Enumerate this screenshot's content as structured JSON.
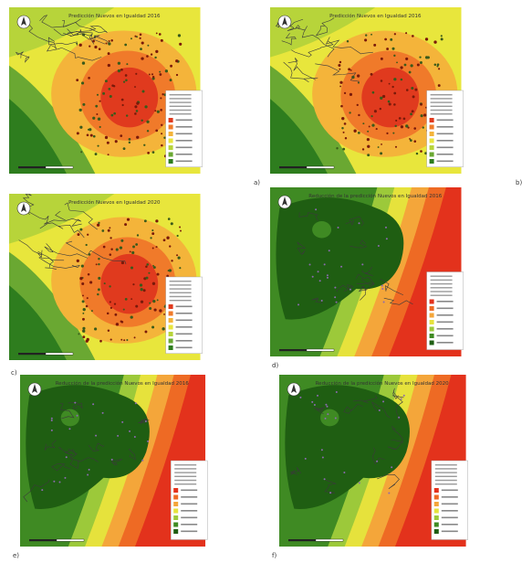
{
  "panels": [
    {
      "title": "Predicción Nuevos en Igualdad 2016",
      "map_type": "density",
      "panel_label": "a)"
    },
    {
      "title": "Predicción Nuevos en Igualdad 2016",
      "map_type": "density",
      "panel_label": "b)"
    },
    {
      "title": "Predicción Nuevos en Igualdad 2020",
      "map_type": "density",
      "panel_label": "c)"
    },
    {
      "title": "Reducción de la predicción Nuevos en Igualdad 2016",
      "map_type": "reduction",
      "panel_label": "d)"
    },
    {
      "title": "Reducción de la predicción Nuevos en Igualdad 2016",
      "map_type": "reduction",
      "panel_label": "e)"
    },
    {
      "title": "Reducción de la predicción Nuevos en Igualdad 2020",
      "map_type": "reduction",
      "panel_label": "f)"
    }
  ],
  "colors": {
    "density_ramp": [
      "#2e7d1e",
      "#6aa832",
      "#b7d43a",
      "#e8e63c",
      "#f4b43a",
      "#f07a2a",
      "#e03a1e"
    ],
    "reduction_ramp": [
      "#1f5e12",
      "#3f8a23",
      "#9cc93a",
      "#e6e23c",
      "#f4a63a",
      "#ee6a24",
      "#e3321c"
    ],
    "outline": "#3a3a3a"
  },
  "icons": {
    "north_arrow": "north-arrow-icon",
    "scale_bar": "scale-bar-icon"
  }
}
